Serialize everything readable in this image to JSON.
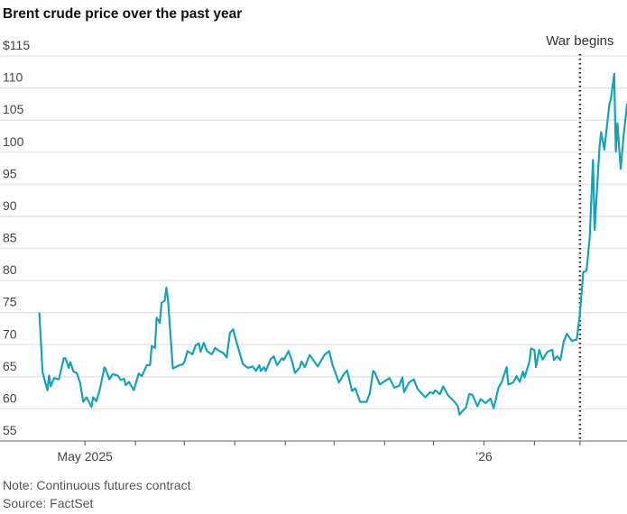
{
  "chart_data": {
    "type": "line",
    "title": "Brent crude price over the past year",
    "xlabel": "",
    "ylabel": "",
    "ylim": [
      55,
      115
    ],
    "yticks": [
      55,
      60,
      65,
      70,
      75,
      80,
      85,
      90,
      95,
      100,
      105,
      110,
      115
    ],
    "ytick_labels": [
      "55",
      "60",
      "65",
      "70",
      "75",
      "80",
      "85",
      "90",
      "95",
      "100",
      "105",
      "110",
      "$115"
    ],
    "xlim": [
      "2025-04-01",
      "2026-03-30"
    ],
    "xticks": [
      "2025-05-01",
      "2025-06-01",
      "2025-07-01",
      "2025-08-01",
      "2025-09-01",
      "2025-10-01",
      "2025-11-01",
      "2025-12-01",
      "2026-01-01",
      "2026-02-01",
      "2026-03-01"
    ],
    "xtick_labels": {
      "2025-05-01": "May 2025",
      "2026-01-01": "’26"
    },
    "grid": true,
    "line_color": "#17a2b8",
    "annotation": {
      "date": "2026-03-01",
      "label": "War begins"
    },
    "series": [
      {
        "points": [
          [
            "2025-04-03",
            75.0
          ],
          [
            "2025-04-05",
            65.7
          ],
          [
            "2025-04-08",
            62.9
          ],
          [
            "2025-04-09",
            65.2
          ],
          [
            "2025-04-10",
            63.5
          ],
          [
            "2025-04-12",
            64.8
          ],
          [
            "2025-04-15",
            64.6
          ],
          [
            "2025-04-18",
            67.9
          ],
          [
            "2025-04-19",
            67.9
          ],
          [
            "2025-04-21",
            66.4
          ],
          [
            "2025-04-22",
            67.3
          ],
          [
            "2025-04-24",
            65.8
          ],
          [
            "2025-04-26",
            65.6
          ],
          [
            "2025-04-28",
            64.1
          ],
          [
            "2025-04-30",
            61.1
          ],
          [
            "2025-05-02",
            61.8
          ],
          [
            "2025-05-05",
            60.3
          ],
          [
            "2025-05-06",
            61.8
          ],
          [
            "2025-05-08",
            61.2
          ],
          [
            "2025-05-10",
            62.9
          ],
          [
            "2025-05-13",
            66.5
          ],
          [
            "2025-05-14",
            66.0
          ],
          [
            "2025-05-16",
            64.6
          ],
          [
            "2025-05-18",
            65.4
          ],
          [
            "2025-05-21",
            65.2
          ],
          [
            "2025-05-23",
            64.5
          ],
          [
            "2025-05-25",
            64.7
          ],
          [
            "2025-05-26",
            63.7
          ],
          [
            "2025-05-28",
            64.2
          ],
          [
            "2025-05-31",
            62.9
          ],
          [
            "2025-06-03",
            65.5
          ],
          [
            "2025-06-05",
            65.1
          ],
          [
            "2025-06-08",
            66.8
          ],
          [
            "2025-06-10",
            66.8
          ],
          [
            "2025-06-11",
            69.8
          ],
          [
            "2025-06-13",
            69.5
          ],
          [
            "2025-06-14",
            74.2
          ],
          [
            "2025-06-16",
            73.4
          ],
          [
            "2025-06-17",
            76.5
          ],
          [
            "2025-06-19",
            76.9
          ],
          [
            "2025-06-20",
            78.9
          ],
          [
            "2025-06-21",
            77.0
          ],
          [
            "2025-06-24",
            66.3
          ],
          [
            "2025-06-28",
            66.8
          ],
          [
            "2025-06-30",
            66.9
          ],
          [
            "2025-07-01",
            67.3
          ],
          [
            "2025-07-03",
            69.0
          ],
          [
            "2025-07-06",
            68.5
          ],
          [
            "2025-07-08",
            69.9
          ],
          [
            "2025-07-10",
            70.2
          ],
          [
            "2025-07-11",
            68.9
          ],
          [
            "2025-07-13",
            70.3
          ],
          [
            "2025-07-15",
            69.0
          ],
          [
            "2025-07-18",
            68.5
          ],
          [
            "2025-07-20",
            69.5
          ],
          [
            "2025-07-22",
            69.1
          ],
          [
            "2025-07-25",
            68.7
          ],
          [
            "2025-07-27",
            68.0
          ],
          [
            "2025-07-29",
            71.8
          ],
          [
            "2025-07-31",
            72.4
          ],
          [
            "2025-08-03",
            69.6
          ],
          [
            "2025-08-06",
            67.0
          ],
          [
            "2025-08-09",
            66.4
          ],
          [
            "2025-08-12",
            66.6
          ],
          [
            "2025-08-14",
            65.9
          ],
          [
            "2025-08-16",
            66.8
          ],
          [
            "2025-08-17",
            65.9
          ],
          [
            "2025-08-19",
            66.5
          ],
          [
            "2025-08-20",
            65.9
          ],
          [
            "2025-08-23",
            67.7
          ],
          [
            "2025-08-25",
            68.2
          ],
          [
            "2025-08-27",
            66.8
          ],
          [
            "2025-08-30",
            67.9
          ],
          [
            "2025-08-31",
            67.6
          ],
          [
            "2025-09-03",
            69.0
          ],
          [
            "2025-09-05",
            67.6
          ],
          [
            "2025-09-07",
            65.6
          ],
          [
            "2025-09-10",
            66.5
          ],
          [
            "2025-09-11",
            67.4
          ],
          [
            "2025-09-13",
            66.5
          ],
          [
            "2025-09-14",
            67.1
          ],
          [
            "2025-09-16",
            68.4
          ],
          [
            "2025-09-21",
            66.6
          ],
          [
            "2025-09-25",
            68.4
          ],
          [
            "2025-09-28",
            69.0
          ],
          [
            "2025-09-30",
            66.9
          ],
          [
            "2025-10-04",
            64.1
          ],
          [
            "2025-10-07",
            65.4
          ],
          [
            "2025-10-09",
            66.0
          ],
          [
            "2025-10-12",
            62.8
          ],
          [
            "2025-10-14",
            63.2
          ],
          [
            "2025-10-17",
            61.1
          ],
          [
            "2025-10-21",
            61.1
          ],
          [
            "2025-10-23",
            62.5
          ],
          [
            "2025-10-25",
            65.9
          ],
          [
            "2025-10-26",
            65.7
          ],
          [
            "2025-10-29",
            63.8
          ],
          [
            "2025-11-01",
            64.3
          ],
          [
            "2025-11-04",
            64.8
          ],
          [
            "2025-11-07",
            63.3
          ],
          [
            "2025-11-10",
            63.6
          ],
          [
            "2025-11-12",
            64.9
          ],
          [
            "2025-11-13",
            62.6
          ],
          [
            "2025-11-16",
            64.1
          ],
          [
            "2025-11-19",
            64.6
          ],
          [
            "2025-11-21",
            63.2
          ],
          [
            "2025-11-23",
            62.6
          ],
          [
            "2025-11-26",
            61.8
          ],
          [
            "2025-11-29",
            62.6
          ],
          [
            "2025-12-01",
            62.4
          ],
          [
            "2025-12-02",
            62.9
          ],
          [
            "2025-12-05",
            62.3
          ],
          [
            "2025-12-07",
            63.5
          ],
          [
            "2025-12-10",
            62.1
          ],
          [
            "2025-12-14",
            61.1
          ],
          [
            "2025-12-16",
            60.4
          ],
          [
            "2025-12-17",
            59.1
          ],
          [
            "2025-12-19",
            59.7
          ],
          [
            "2025-12-21",
            60.2
          ],
          [
            "2025-12-23",
            62.3
          ],
          [
            "2025-12-25",
            62.2
          ],
          [
            "2025-12-28",
            60.4
          ],
          [
            "2025-12-30",
            61.5
          ],
          [
            "2026-01-02",
            60.9
          ],
          [
            "2026-01-05",
            61.6
          ],
          [
            "2026-01-07",
            60.1
          ],
          [
            "2026-01-10",
            63.3
          ],
          [
            "2026-01-12",
            64.2
          ],
          [
            "2026-01-15",
            66.5
          ],
          [
            "2026-01-16",
            63.8
          ],
          [
            "2026-01-19",
            64.1
          ],
          [
            "2026-01-21",
            65.1
          ],
          [
            "2026-01-23",
            64.2
          ],
          [
            "2026-01-25",
            65.8
          ],
          [
            "2026-01-26",
            64.9
          ],
          [
            "2026-01-29",
            67.4
          ],
          [
            "2026-01-30",
            69.4
          ],
          [
            "2026-02-01",
            69.2
          ],
          [
            "2026-02-02",
            66.5
          ],
          [
            "2026-02-04",
            69.2
          ],
          [
            "2026-02-06",
            67.7
          ],
          [
            "2026-02-09",
            68.9
          ],
          [
            "2026-02-12",
            69.2
          ],
          [
            "2026-02-13",
            67.6
          ],
          [
            "2026-02-15",
            68.2
          ],
          [
            "2026-02-17",
            67.6
          ],
          [
            "2026-02-19",
            70.5
          ],
          [
            "2026-02-21",
            71.7
          ],
          [
            "2026-02-24",
            70.6
          ],
          [
            "2026-02-27",
            70.8
          ],
          [
            "2026-03-01",
            75.0
          ],
          [
            "2026-03-03",
            81.3
          ],
          [
            "2026-03-05",
            81.5
          ],
          [
            "2026-03-07",
            86.8
          ],
          [
            "2026-03-09",
            98.8
          ],
          [
            "2026-03-10",
            87.9
          ],
          [
            "2026-03-13",
            100.8
          ],
          [
            "2026-03-14",
            103.1
          ],
          [
            "2026-03-16",
            100.4
          ],
          [
            "2026-03-19",
            107.4
          ],
          [
            "2026-03-20",
            108.3
          ],
          [
            "2026-03-22",
            112.2
          ],
          [
            "2026-03-23",
            100.1
          ],
          [
            "2026-03-24",
            104.5
          ],
          [
            "2026-03-26",
            97.4
          ],
          [
            "2026-03-28",
            103.1
          ],
          [
            "2026-03-30",
            107.6
          ]
        ]
      }
    ]
  },
  "notes": {
    "note": "Note: Continuous futures contract",
    "source": "Source: FactSet"
  }
}
